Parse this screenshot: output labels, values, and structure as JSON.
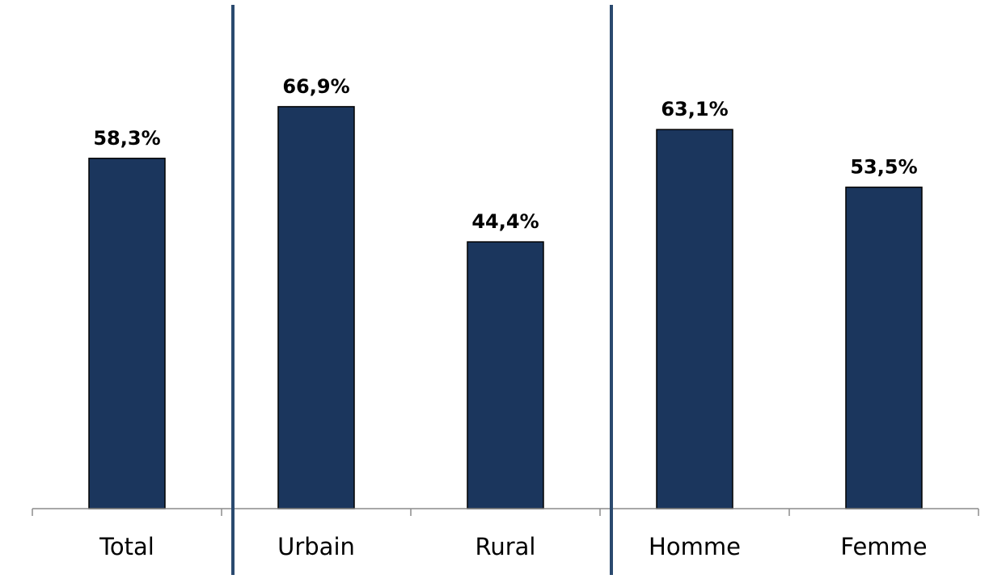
{
  "chart_data": {
    "type": "bar",
    "categories": [
      "Total",
      "Urbain",
      "Rural",
      "Homme",
      "Femme"
    ],
    "values": [
      58.3,
      66.9,
      44.4,
      63.1,
      53.5
    ],
    "value_labels": [
      "58,3%",
      "66,9%",
      "44,4%",
      "63,1%",
      "53,5%"
    ],
    "groups": [
      {
        "categories": [
          "Total"
        ]
      },
      {
        "categories": [
          "Urbain",
          "Rural"
        ]
      },
      {
        "categories": [
          "Homme",
          "Femme"
        ]
      }
    ],
    "ylim": [
      0,
      100
    ],
    "grid": false,
    "legend": "none",
    "title": "",
    "xlabel": "",
    "ylabel": ""
  },
  "colors": {
    "bar": "#1b365d",
    "separator": "#2b4a6f",
    "axis": "#8c8c8c",
    "background": "#ffffff"
  }
}
